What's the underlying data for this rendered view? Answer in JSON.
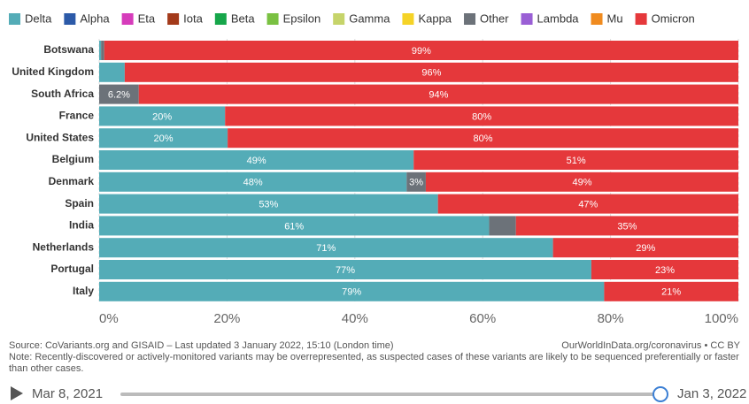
{
  "chart_data": {
    "type": "stacked-bar-horizontal",
    "categories": [
      "Botswana",
      "United Kingdom",
      "South Africa",
      "France",
      "United States",
      "Belgium",
      "Denmark",
      "Spain",
      "India",
      "Netherlands",
      "Portugal",
      "Italy"
    ],
    "series": [
      {
        "name": "Delta",
        "color": "#54acb7",
        "values": [
          0.3,
          4,
          0,
          19.7,
          20.1,
          49.2,
          48.1,
          53,
          61,
          71,
          77,
          79
        ],
        "value_labels": [
          null,
          null,
          null,
          "20%",
          "20%",
          "49%",
          "48%",
          "53%",
          "61%",
          "71%",
          "77%",
          "79%"
        ]
      },
      {
        "name": "Alpha",
        "color": "#2c5aa8",
        "values": [
          0,
          0,
          0,
          0,
          0,
          0,
          0,
          0,
          0,
          0,
          0,
          0
        ]
      },
      {
        "name": "Eta",
        "color": "#d63cbb",
        "values": [
          0,
          0,
          0,
          0,
          0,
          0,
          0,
          0,
          0,
          0,
          0,
          0
        ]
      },
      {
        "name": "Iota",
        "color": "#a33a1a",
        "values": [
          0,
          0,
          0,
          0,
          0,
          0,
          0,
          0,
          0,
          0,
          0,
          0
        ]
      },
      {
        "name": "Beta",
        "color": "#16a64a",
        "values": [
          0,
          0,
          0,
          0,
          0,
          0,
          0,
          0,
          0,
          0,
          0,
          0
        ]
      },
      {
        "name": "Epsilon",
        "color": "#7ac142",
        "values": [
          0,
          0,
          0,
          0,
          0,
          0,
          0,
          0,
          0,
          0,
          0,
          0
        ]
      },
      {
        "name": "Gamma",
        "color": "#c6d46a",
        "values": [
          0,
          0,
          0,
          0,
          0,
          0,
          0,
          0,
          0,
          0,
          0,
          0
        ]
      },
      {
        "name": "Kappa",
        "color": "#f5d327",
        "values": [
          0,
          0,
          0,
          0,
          0,
          0,
          0,
          0,
          0,
          0,
          0,
          0
        ]
      },
      {
        "name": "Other",
        "color": "#6c7279",
        "values": [
          0.5,
          0,
          6.2,
          0,
          0,
          0,
          3,
          0,
          4.2,
          0,
          0,
          0
        ],
        "value_labels": [
          null,
          null,
          "6.2%",
          null,
          null,
          null,
          "3%",
          null,
          null,
          null,
          null,
          null
        ]
      },
      {
        "name": "Lambda",
        "color": "#9a5fd5",
        "values": [
          0,
          0,
          0,
          0,
          0,
          0,
          0,
          0,
          0,
          0,
          0,
          0
        ]
      },
      {
        "name": "Mu",
        "color": "#f08b1f",
        "values": [
          0,
          0,
          0,
          0,
          0,
          0,
          0,
          0,
          0,
          0,
          0,
          0
        ]
      },
      {
        "name": "Omicron",
        "color": "#e5383b",
        "values": [
          99.2,
          96,
          93.8,
          80.3,
          79.9,
          50.8,
          48.9,
          47,
          34.8,
          29,
          23,
          21
        ],
        "value_labels": [
          "99%",
          "96%",
          "94%",
          "80%",
          "80%",
          "51%",
          "49%",
          "47%",
          "35%",
          "29%",
          "23%",
          "21%"
        ]
      }
    ],
    "xlim": [
      0,
      100
    ],
    "xticks": [
      {
        "value": 0,
        "label": "0%"
      },
      {
        "value": 20,
        "label": "20%"
      },
      {
        "value": 40,
        "label": "40%"
      },
      {
        "value": 60,
        "label": "60%"
      },
      {
        "value": 80,
        "label": "80%"
      },
      {
        "value": 100,
        "label": "100%"
      }
    ],
    "grid": true,
    "source": "Source: CoVariants.org and GISAID – Last updated 3 January 2022, 15:10 (London time)",
    "credit": "OurWorldInData.org/coronavirus • CC BY",
    "note": "Note: Recently-discovered or actively-monitored variants may be overrepresented, as suspected cases of these variants are likely to be sequenced preferentially or faster than other cases.",
    "timeline_start": "Mar 8, 2021",
    "timeline_end": "Jan 3, 2022"
  }
}
